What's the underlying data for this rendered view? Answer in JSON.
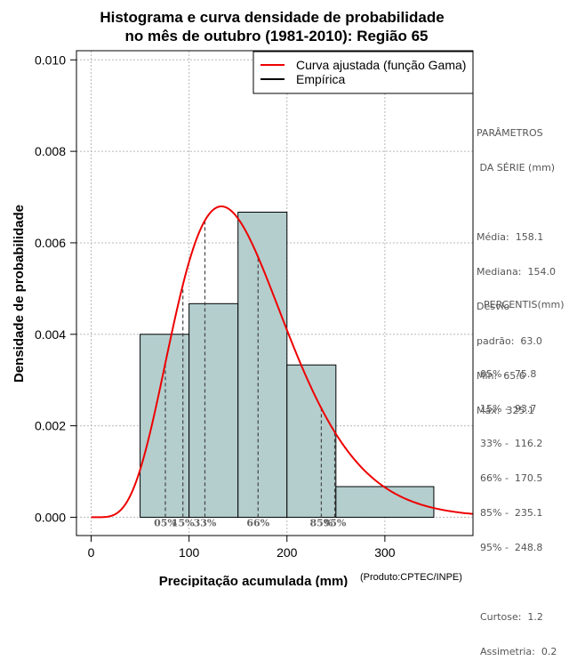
{
  "chart_data": {
    "type": "bar",
    "title_lines": [
      "Histograma e curva densidade de probabilidade",
      "no mês de outubro (1981-2010): Região 65"
    ],
    "xlabel": "Precipitação acumulada (mm)",
    "ylabel": "Densidade de probabilidade",
    "credit": "(Produto:CPTEC/INPE)",
    "xlim": [
      -15,
      390
    ],
    "ylim": [
      -0.0004,
      0.0102
    ],
    "xticks": [
      0,
      100,
      200,
      300
    ],
    "xtick_labels": [
      "0",
      "100",
      "200",
      "300"
    ],
    "yticks": [
      0,
      0.002,
      0.004,
      0.006,
      0.008,
      0.01
    ],
    "ytick_labels": [
      "0.000",
      "0.002",
      "0.004",
      "0.006",
      "0.008",
      "0.010"
    ],
    "grid": true,
    "histogram": {
      "bins": [
        {
          "x0": 50,
          "x1": 100,
          "density": 0.004
        },
        {
          "x0": 100,
          "x1": 150,
          "density": 0.00467
        },
        {
          "x0": 150,
          "x1": 200,
          "density": 0.00667
        },
        {
          "x0": 200,
          "x1": 250,
          "density": 0.00333
        },
        {
          "x0": 250,
          "x1": 350,
          "density": 0.00067
        }
      ],
      "fill": "#b4cece"
    },
    "gamma_fit": {
      "shape": 6.3,
      "scale": 25.1,
      "color": "#ee0000"
    },
    "legend": {
      "position": "top-right",
      "entries": [
        {
          "label": "Curva ajustada (função Gama)",
          "color": "#ee0000"
        },
        {
          "label": "Empírica",
          "color": "#000000"
        }
      ]
    },
    "percentile_markers": [
      {
        "label": "05%",
        "x": 75.8
      },
      {
        "label": "15%",
        "x": 93.7
      },
      {
        "label": "33%",
        "x": 116.2
      },
      {
        "label": "66%",
        "x": 170.5
      },
      {
        "label": "85%",
        "x": 235.1
      },
      {
        "label": "95%",
        "x": 248.8
      }
    ]
  },
  "stats": {
    "title1": "PARÂMETROS",
    "title2": " DA SÉRIE (mm)",
    "media": "Média:  158.1",
    "mediana": "Mediana:  154.0",
    "desvio1": "Desvio",
    "desvio2": "padrão:  63.0",
    "min": "Mín:  65.6",
    "max": "Máx:  325.1"
  },
  "percentiles": {
    "title": "PERCENTIS(mm)",
    "p05": "05% -  75.8",
    "p15": "15% -  93.7",
    "p33": "33% -  116.2",
    "p66": "66% -  170.5",
    "p85": "85% -  235.1",
    "p95": "95% -  248.8",
    "curtose": "Curtose:  1.2",
    "assimetria": "Assimetria:  0.2"
  }
}
